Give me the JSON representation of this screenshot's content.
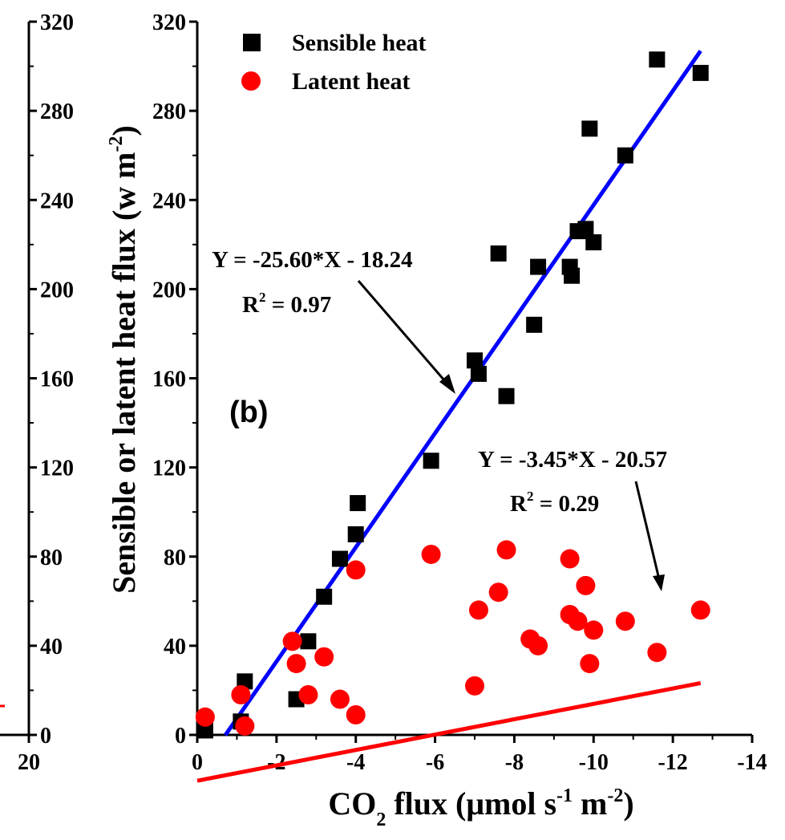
{
  "chart_data": {
    "type": "scatter",
    "panel_label": "(b)",
    "xlabel": {
      "main": "CO",
      "sub": "2",
      "mid": " flux (μmol s",
      "sup1": "-1",
      "mid2": " m",
      "sup2": "-2",
      "end": ")"
    },
    "ylabel": {
      "main": "Sensible or latent heat flux (w m",
      "sup": "-2",
      "end": ")"
    },
    "xlim": [
      0,
      -14
    ],
    "ylim": [
      0,
      320
    ],
    "x_ticks": [
      "0",
      "-2",
      "-4",
      "-6",
      "-8",
      "-10",
      "-12",
      "-14"
    ],
    "y_ticks": [
      "0",
      "40",
      "80",
      "120",
      "160",
      "200",
      "240",
      "280",
      "320"
    ],
    "left_partial_axis": {
      "y_ticks": [
        "0",
        "40",
        "80",
        "120",
        "160",
        "200",
        "240",
        "280",
        "320"
      ],
      "x_tick": "20"
    },
    "series": [
      {
        "name": "Sensible heat",
        "marker": "square",
        "color": "#000000",
        "points": [
          [
            -0.2,
            2
          ],
          [
            -1.1,
            6
          ],
          [
            -1.2,
            24
          ],
          [
            -2.5,
            16
          ],
          [
            -2.8,
            42
          ],
          [
            -3.2,
            62
          ],
          [
            -3.6,
            79
          ],
          [
            -4.0,
            90
          ],
          [
            -4.05,
            104
          ],
          [
            -5.9,
            123
          ],
          [
            -7.0,
            168
          ],
          [
            -7.1,
            162
          ],
          [
            -7.8,
            152
          ],
          [
            -7.6,
            216
          ],
          [
            -8.5,
            184
          ],
          [
            -8.6,
            210
          ],
          [
            -9.4,
            210
          ],
          [
            -9.45,
            206
          ],
          [
            -9.6,
            226
          ],
          [
            -9.8,
            227
          ],
          [
            -10.0,
            221
          ],
          [
            -9.9,
            272
          ],
          [
            -10.8,
            260
          ],
          [
            -11.6,
            303
          ],
          [
            -12.7,
            297
          ]
        ]
      },
      {
        "name": "Latent heat",
        "marker": "circle",
        "color": "#ff0000",
        "points": [
          [
            -0.2,
            8
          ],
          [
            -1.1,
            18
          ],
          [
            -1.2,
            4
          ],
          [
            -2.4,
            42
          ],
          [
            -2.5,
            32
          ],
          [
            -2.8,
            18
          ],
          [
            -3.2,
            35
          ],
          [
            -3.6,
            16
          ],
          [
            -4.0,
            74
          ],
          [
            -4.0,
            9
          ],
          [
            -5.9,
            81
          ],
          [
            -7.0,
            22
          ],
          [
            -7.1,
            56
          ],
          [
            -7.6,
            64
          ],
          [
            -7.8,
            83
          ],
          [
            -8.4,
            43
          ],
          [
            -8.6,
            40
          ],
          [
            -9.4,
            79
          ],
          [
            -9.4,
            54
          ],
          [
            -9.6,
            51
          ],
          [
            -9.8,
            67
          ],
          [
            -9.9,
            32
          ],
          [
            -10.0,
            47
          ],
          [
            -10.8,
            51
          ],
          [
            -11.6,
            37
          ],
          [
            -12.7,
            56
          ]
        ]
      }
    ],
    "fits": [
      {
        "series": "Sensible heat",
        "slope": -25.6,
        "intercept": -18.24,
        "x_range": [
          -0.71,
          -12.7
        ],
        "color": "#0000ff",
        "equation": "Y = -25.60*X - 18.24",
        "r2_label": "R",
        "r2_sup": "2",
        "r2_value": " = 0.97"
      },
      {
        "series": "Latent heat",
        "slope": -3.45,
        "intercept": -20.57,
        "x_range": [
          0,
          -12.7
        ],
        "color": "#ff0000",
        "equation": "Y = -3.45*X - 20.57",
        "r2_label": "R",
        "r2_sup": "2",
        "r2_value": " = 0.29"
      }
    ],
    "legend_placement": "top-left",
    "grid": false
  }
}
